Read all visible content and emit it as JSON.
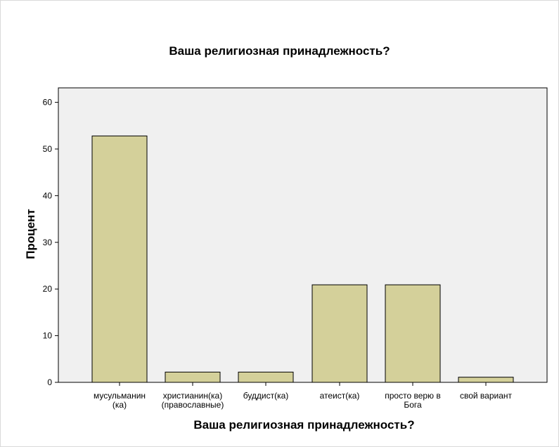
{
  "chart_data": {
    "type": "bar",
    "title": "Ваша религиозная принадлежность?",
    "xlabel": "Ваша религиозная принадлежность?",
    "ylabel": "Процент",
    "categories": [
      [
        "мусульманин",
        "(ка)"
      ],
      [
        "христианин(ка)",
        "(православные)"
      ],
      [
        "буддист(ка)"
      ],
      [
        "атеист(ка)"
      ],
      [
        "просто верю в",
        "Бога"
      ],
      [
        "свой вариант"
      ]
    ],
    "values": [
      52.8,
      2.2,
      2.2,
      20.9,
      20.9,
      1.1
    ],
    "ylim": [
      0,
      62
    ],
    "yticks": [
      0,
      10,
      20,
      30,
      40,
      50,
      60
    ],
    "grid": false,
    "colors": {
      "bar": "#d4d09a",
      "bar_stroke": "#000000",
      "plot_background": "#f0f0f0"
    }
  }
}
